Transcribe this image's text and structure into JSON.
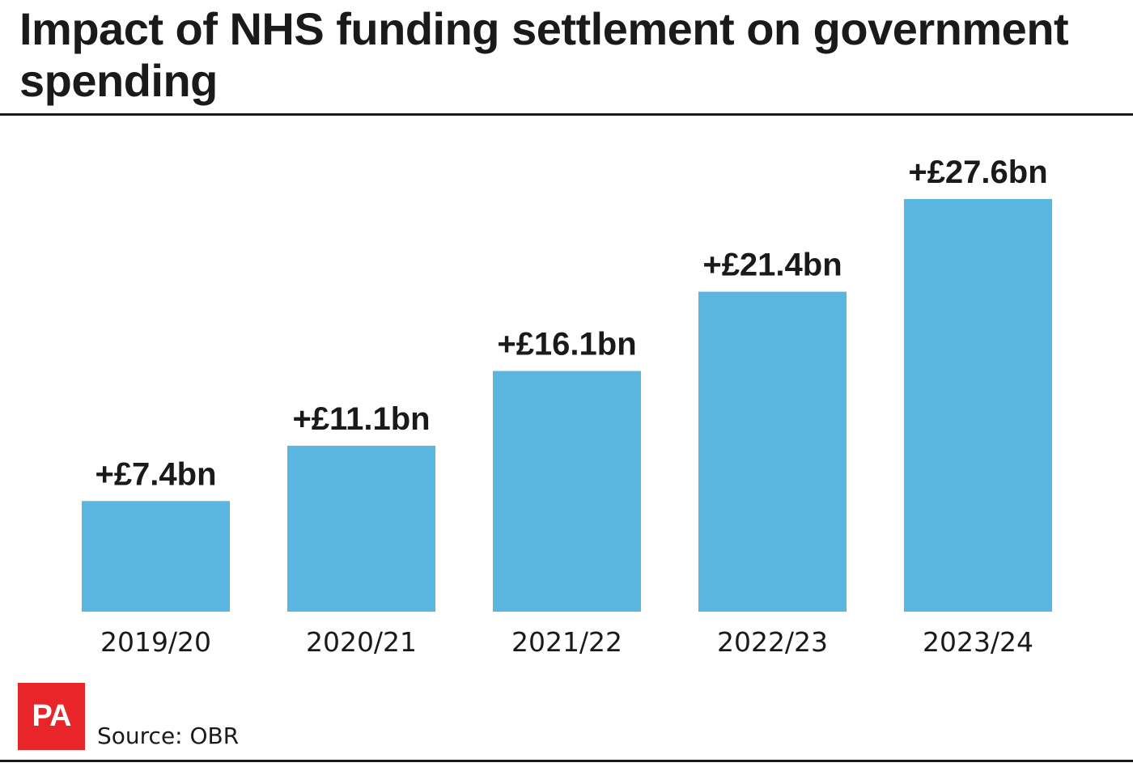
{
  "title": "Impact of NHS funding settlement on government spending",
  "source": "Source: OBR",
  "logo_text": "PA",
  "colors": {
    "bar": "#5ab6df",
    "text": "#1a1a1a",
    "logo_bg": "#e8262a"
  },
  "chart_data": {
    "type": "bar",
    "title": "Impact of NHS funding settlement on government spending",
    "xlabel": "",
    "ylabel": "",
    "categories": [
      "2019/20",
      "2020/21",
      "2021/22",
      "2022/23",
      "2023/24"
    ],
    "values": [
      7.4,
      11.1,
      16.1,
      21.4,
      27.6
    ],
    "data_labels": [
      "+£7.4bn",
      "+£11.1bn",
      "+£16.1bn",
      "+£21.4bn",
      "+£27.6bn"
    ],
    "ylim": [
      0,
      27.6
    ],
    "grid": false,
    "legend": "none"
  }
}
